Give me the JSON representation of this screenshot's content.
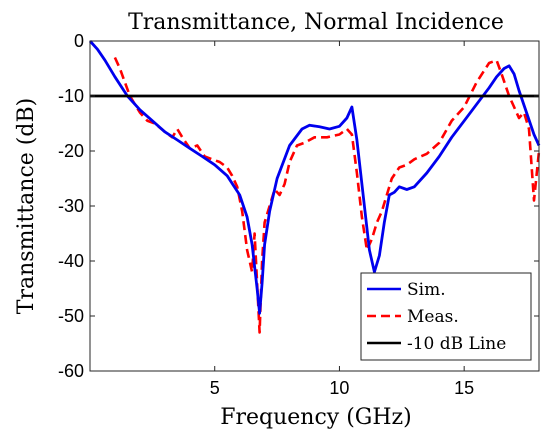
{
  "chart_data": {
    "type": "line",
    "title": "Transmittance, Normal Incidence",
    "xlabel": "Frequency (GHz)",
    "ylabel": "Transmittance (dB)",
    "xlim": [
      0,
      18
    ],
    "ylim": [
      -60,
      0
    ],
    "xticks": [
      5,
      10,
      15
    ],
    "yticks": [
      0,
      -10,
      -20,
      -30,
      -40,
      -50,
      -60
    ],
    "grid": false,
    "legend_position": "bottom-right",
    "series": [
      {
        "name": "Sim.",
        "color": "#0000ee",
        "style": "solid",
        "x": [
          0.0,
          0.3,
          0.6,
          1.0,
          1.5,
          2.0,
          2.5,
          3.0,
          3.5,
          4.0,
          4.5,
          5.0,
          5.5,
          6.0,
          6.3,
          6.5,
          6.7,
          6.8,
          6.9,
          7.0,
          7.2,
          7.5,
          8.0,
          8.5,
          8.8,
          9.2,
          9.6,
          10.0,
          10.3,
          10.5,
          10.7,
          11.0,
          11.2,
          11.4,
          11.6,
          11.8,
          12.0,
          12.2,
          12.4,
          12.7,
          13.0,
          13.5,
          14.0,
          14.5,
          15.0,
          15.5,
          16.0,
          16.3,
          16.6,
          16.8,
          17.0,
          17.2,
          17.5,
          17.8,
          18.0
        ],
        "y": [
          0.0,
          -1.5,
          -3.5,
          -6.5,
          -10.0,
          -12.5,
          -14.5,
          -16.5,
          -18.0,
          -19.5,
          -21.0,
          -22.5,
          -24.5,
          -28.0,
          -32.0,
          -37.0,
          -45.0,
          -49.5,
          -44.0,
          -37.0,
          -31.0,
          -25.0,
          -19.0,
          -16.0,
          -15.3,
          -15.6,
          -16.0,
          -15.5,
          -14.0,
          -12.0,
          -18.0,
          -30.0,
          -38.0,
          -42.0,
          -39.0,
          -33.0,
          -28.0,
          -27.5,
          -26.5,
          -27.0,
          -26.5,
          -24.0,
          -21.0,
          -17.5,
          -14.5,
          -11.5,
          -8.5,
          -6.5,
          -5.0,
          -4.5,
          -6.0,
          -9.0,
          -13.0,
          -17.0,
          -19.0
        ]
      },
      {
        "name": "Meas.",
        "color": "#ff0000",
        "style": "dashed",
        "x": [
          1.0,
          1.2,
          1.4,
          1.6,
          1.8,
          2.0,
          2.3,
          2.6,
          3.0,
          3.3,
          3.5,
          3.7,
          4.0,
          4.3,
          4.6,
          4.9,
          5.2,
          5.5,
          5.7,
          5.9,
          6.1,
          6.3,
          6.5,
          6.6,
          6.7,
          6.8,
          6.9,
          7.0,
          7.2,
          7.4,
          7.6,
          7.8,
          8.0,
          8.3,
          8.6,
          9.0,
          9.5,
          10.0,
          10.3,
          10.5,
          10.7,
          10.9,
          11.1,
          11.3,
          11.5,
          11.7,
          11.9,
          12.1,
          12.4,
          12.7,
          13.0,
          13.5,
          14.0,
          14.5,
          15.0,
          15.5,
          16.0,
          16.3,
          16.5,
          16.8,
          17.0,
          17.2,
          17.4,
          17.6,
          17.8,
          18.0
        ],
        "y": [
          -3.0,
          -5.0,
          -7.5,
          -10.0,
          -11.5,
          -13.0,
          -14.5,
          -15.0,
          -16.5,
          -17.5,
          -16.0,
          -17.5,
          -19.5,
          -19.0,
          -21.0,
          -21.5,
          -22.0,
          -23.0,
          -24.5,
          -26.5,
          -31.0,
          -38.0,
          -42.0,
          -35.0,
          -44.0,
          -53.0,
          -40.0,
          -33.0,
          -30.0,
          -27.0,
          -28.0,
          -26.0,
          -22.0,
          -19.0,
          -18.5,
          -17.5,
          -17.5,
          -17.0,
          -16.0,
          -17.0,
          -24.0,
          -32.0,
          -38.0,
          -36.0,
          -33.0,
          -31.0,
          -28.0,
          -25.0,
          -23.0,
          -22.5,
          -21.5,
          -20.5,
          -18.5,
          -14.5,
          -12.0,
          -7.5,
          -4.0,
          -3.5,
          -6.0,
          -10.0,
          -12.0,
          -14.0,
          -13.0,
          -16.0,
          -29.0,
          -20.0
        ]
      },
      {
        "name": "-10 dB Line",
        "color": "#000000",
        "style": "solid",
        "x": [
          0,
          18
        ],
        "y": [
          -10,
          -10
        ]
      }
    ]
  }
}
